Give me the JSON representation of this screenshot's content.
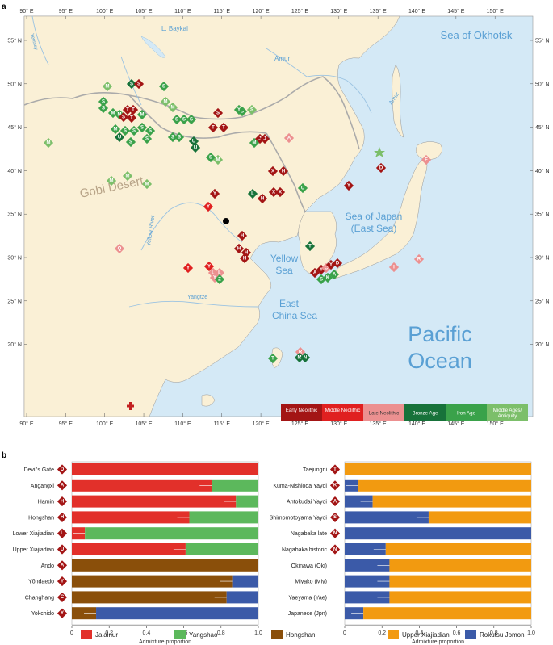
{
  "panel_labels": {
    "a": "a",
    "b": "b"
  },
  "map": {
    "lon_ticks": [
      "90° E",
      "95° E",
      "100° E",
      "105° E",
      "110° E",
      "115° E",
      "120° E",
      "125° E",
      "130° E",
      "135° E",
      "140° E",
      "145° E",
      "150° E"
    ],
    "lat_ticks": [
      "55° N",
      "50° N",
      "45° N",
      "40° N",
      "35° N",
      "30° N",
      "25° N",
      "20° N"
    ],
    "water_labels": {
      "okhotsk": "Sea of Okhotsk",
      "japan_line1": "Sea of Japan",
      "japan_line2": "(East Sea)",
      "yellow_line1": "Yellow",
      "yellow_line2": "Sea",
      "ecs_line1": "East",
      "ecs_line2": "China Sea",
      "pacific_line1": "Pacific",
      "pacific_line2": "Ocean",
      "baykal": "L. Baykal",
      "yenisey": "Yenisey",
      "amur": "Amur",
      "yellow_river": "Yellow River",
      "yangtze": "Yangtze",
      "gobi": "Gobi Desert"
    },
    "legend": [
      "Early Neolithic",
      "Middle Neolithic",
      "Late Neolithic",
      "Bronze Age",
      "Iron Age",
      "Middle Ages/ Antiquity"
    ],
    "colors": {
      "early_neolithic": "#a31515",
      "middle_neolithic": "#e02020",
      "late_neolithic": "#ec9090",
      "bronze_age": "#17723a",
      "iron_age": "#3aa24a",
      "middle_ages": "#7cbf6a",
      "land": "#faf0d6",
      "water": "#d4e9f6"
    }
  },
  "chart_data": [
    {
      "type": "bar",
      "orientation": "horizontal-stacked",
      "xlabel": "Admixture proportion",
      "xlim": [
        0,
        1
      ],
      "x_ticks": [
        "0",
        "0.2",
        "0.4",
        "0.6",
        "0.8",
        "1.0"
      ],
      "categories": [
        "Devil's Gate",
        "Angangxi",
        "Hamin",
        "Hongshan",
        "Lower Xiajiadian",
        "Upper Xiajiadian",
        "Ando",
        "Yŏndaedo",
        "Changhang",
        "Yokchido"
      ],
      "markers": [
        "D",
        "A",
        "H",
        "H",
        "L",
        "U",
        "A",
        "Y",
        "C",
        "Y"
      ],
      "series": [
        {
          "name": "Jalainur",
          "values": [
            1.0,
            0.75,
            0.88,
            0.63,
            0.07,
            0.61,
            0,
            0,
            0,
            0
          ]
        },
        {
          "name": "Yangshao",
          "values": [
            0,
            0.25,
            0.12,
            0.37,
            0.93,
            0.39,
            0,
            0,
            0,
            0
          ]
        },
        {
          "name": "Hongshan",
          "values": [
            0,
            0,
            0,
            0,
            0,
            0,
            1.0,
            0.86,
            0.83,
            0.13
          ]
        },
        {
          "name": "Rokutsu Jomon",
          "values": [
            0,
            0,
            0,
            0,
            0,
            0,
            0,
            0.14,
            0.17,
            0.87
          ]
        }
      ]
    },
    {
      "type": "bar",
      "orientation": "horizontal-stacked",
      "xlabel": "Admixture proportion",
      "xlim": [
        0,
        1
      ],
      "x_ticks": [
        "0",
        "0.2",
        "0.4",
        "0.6",
        "0.8",
        "1.0"
      ],
      "categories": [
        "Taejungni",
        "Kuma-Nishioda Yayoi",
        "Antokudai Yayoi",
        "Shimomotoyama Yayoi",
        "Nagabaka late",
        "Nagabaka historic",
        "Okinawa (Oki)",
        "Miyako (Miy)",
        "Yaeyama (Yae)",
        "Japanese (Jpn)"
      ],
      "markers": [
        "T",
        "K",
        "A",
        "S",
        "N",
        "N",
        "",
        "",
        "",
        ""
      ],
      "series": [
        {
          "name": "Rokutsu Jomon",
          "values": [
            0,
            0.07,
            0.15,
            0.45,
            1.0,
            0.22,
            0.24,
            0.24,
            0.24,
            0.1
          ]
        },
        {
          "name": "Upper Xiajiadian",
          "values": [
            1.0,
            0.93,
            0.85,
            0.55,
            0,
            0.78,
            0.76,
            0.76,
            0.76,
            0.9
          ]
        }
      ]
    }
  ],
  "legend": [
    {
      "name": "Jalainur",
      "color": "#e2302a"
    },
    {
      "name": "Yangshao",
      "color": "#5cb85c"
    },
    {
      "name": "Hongshan",
      "color": "#8a4f0a"
    },
    {
      "name": "Upper Xiajiadian",
      "color": "#f29a10"
    },
    {
      "name": "Rokutsu Jomon",
      "color": "#3b5aa8"
    }
  ]
}
